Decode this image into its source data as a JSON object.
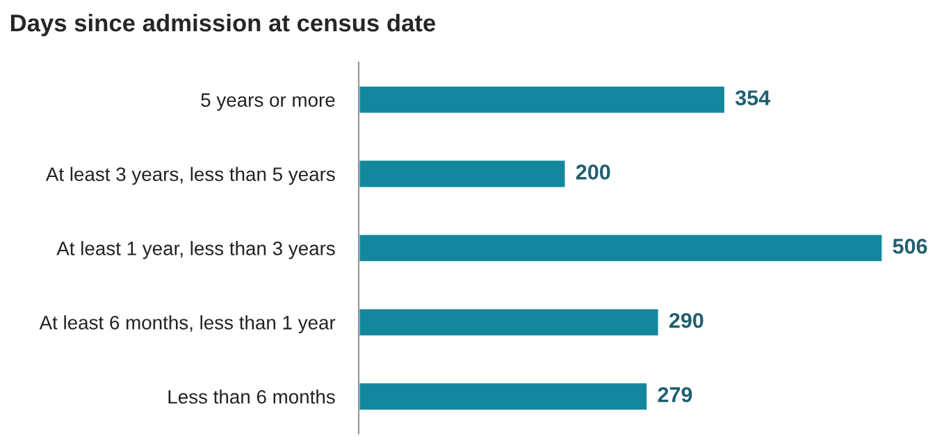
{
  "chart_data": {
    "type": "bar",
    "orientation": "horizontal",
    "title": "Days since admission at census date",
    "categories": [
      "5 years or more",
      "At least 3 years, less than 5 years",
      "At least 1 year, less than 3 years",
      "At least 6 months, less than 1 year",
      "Less than 6 months"
    ],
    "values": [
      354,
      200,
      506,
      290,
      279
    ],
    "color": "#13879e",
    "data_labels": true,
    "tick_labels": "y",
    "grid": false,
    "legend": false
  }
}
